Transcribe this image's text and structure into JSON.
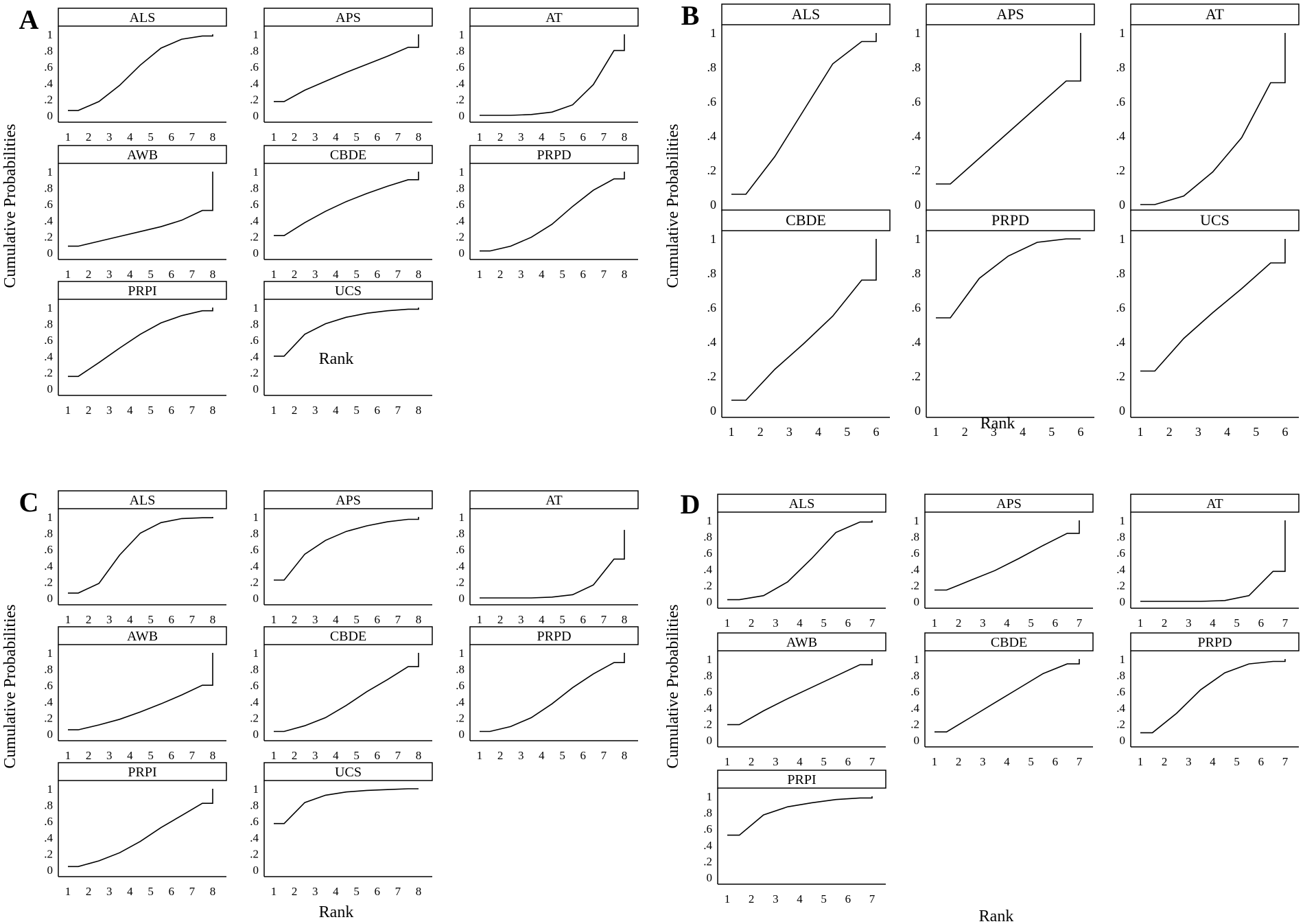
{
  "figure": {
    "panels": [
      {
        "label": "A",
        "xlabel": "Rank",
        "ylabel": "Cumulative Probabilities",
        "ytick_labels": [
          "0",
          ".2",
          ".4",
          ".6",
          ".8",
          "1"
        ],
        "n_rank": 8,
        "subplots": [
          {
            "title": "ALS",
            "values": [
              0.06,
              0.17,
              0.37,
              0.62,
              0.83,
              0.94,
              0.98,
              1.0
            ]
          },
          {
            "title": "APS",
            "values": [
              0.17,
              0.31,
              0.42,
              0.53,
              0.63,
              0.73,
              0.84,
              1.0
            ]
          },
          {
            "title": "AT",
            "values": [
              0.0,
              0.0,
              0.01,
              0.04,
              0.13,
              0.38,
              0.8,
              1.0
            ]
          },
          {
            "title": "AWB",
            "values": [
              0.08,
              0.14,
              0.2,
              0.26,
              0.32,
              0.4,
              0.52,
              1.0
            ]
          },
          {
            "title": "CBDE",
            "values": [
              0.21,
              0.37,
              0.51,
              0.63,
              0.73,
              0.82,
              0.9,
              1.0
            ]
          },
          {
            "title": "PRPD",
            "values": [
              0.02,
              0.08,
              0.19,
              0.35,
              0.57,
              0.77,
              0.91,
              1.0
            ]
          },
          {
            "title": "PRPI",
            "values": [
              0.15,
              0.32,
              0.5,
              0.67,
              0.81,
              0.9,
              0.96,
              1.0
            ]
          },
          {
            "title": "UCS",
            "values": [
              0.4,
              0.67,
              0.8,
              0.88,
              0.93,
              0.96,
              0.98,
              1.0
            ]
          }
        ]
      },
      {
        "label": "B",
        "xlabel": "Rank",
        "ylabel": "Cumulative Probabilities",
        "ytick_labels": [
          "0",
          ".2",
          ".4",
          ".6",
          ".8",
          "1"
        ],
        "n_rank": 6,
        "subplots": [
          {
            "title": "ALS",
            "values": [
              0.06,
              0.28,
              0.55,
              0.82,
              0.95,
              1.0
            ]
          },
          {
            "title": "APS",
            "values": [
              0.12,
              0.27,
              0.42,
              0.57,
              0.72,
              1.0
            ]
          },
          {
            "title": "AT",
            "values": [
              0.0,
              0.05,
              0.19,
              0.39,
              0.71,
              1.0
            ]
          },
          {
            "title": "CBDE",
            "values": [
              0.06,
              0.24,
              0.39,
              0.55,
              0.76,
              1.0
            ]
          },
          {
            "title": "PRPD",
            "values": [
              0.54,
              0.77,
              0.9,
              0.98,
              1.0,
              1.0
            ]
          },
          {
            "title": "UCS",
            "values": [
              0.23,
              0.42,
              0.57,
              0.71,
              0.86,
              1.0
            ]
          }
        ]
      },
      {
        "label": "C",
        "xlabel": "Rank",
        "ylabel": "Cumulative Probabilities",
        "ytick_labels": [
          "0",
          ".2",
          ".4",
          ".6",
          ".8",
          "1"
        ],
        "n_rank": 8,
        "subplots": [
          {
            "title": "ALS",
            "values": [
              0.06,
              0.18,
              0.53,
              0.8,
              0.93,
              0.98,
              0.99,
              1.0
            ]
          },
          {
            "title": "APS",
            "values": [
              0.22,
              0.54,
              0.71,
              0.82,
              0.89,
              0.94,
              0.97,
              1.0
            ]
          },
          {
            "title": "AT",
            "values": [
              0.0,
              0.0,
              0.0,
              0.01,
              0.04,
              0.16,
              0.48,
              0.84
            ]
          },
          {
            "title": "AWB",
            "values": [
              0.05,
              0.11,
              0.18,
              0.27,
              0.37,
              0.48,
              0.6,
              1.0
            ]
          },
          {
            "title": "CBDE",
            "values": [
              0.03,
              0.1,
              0.2,
              0.35,
              0.52,
              0.67,
              0.83,
              1.0
            ]
          },
          {
            "title": "PRPD",
            "values": [
              0.03,
              0.09,
              0.2,
              0.37,
              0.57,
              0.74,
              0.88,
              1.0
            ]
          },
          {
            "title": "PRPI",
            "values": [
              0.04,
              0.11,
              0.21,
              0.35,
              0.52,
              0.67,
              0.82,
              1.0
            ]
          },
          {
            "title": "UCS",
            "values": [
              0.57,
              0.83,
              0.92,
              0.96,
              0.98,
              0.99,
              1.0,
              1.0
            ]
          }
        ]
      },
      {
        "label": "D",
        "xlabel": "Rank",
        "ylabel": "Cumulative Probabilities",
        "ytick_labels": [
          "0",
          ".2",
          ".4",
          ".6",
          ".8",
          "1"
        ],
        "n_rank": 7,
        "subplots": [
          {
            "title": "ALS",
            "values": [
              0.02,
              0.07,
              0.24,
              0.53,
              0.85,
              0.98,
              1.0
            ]
          },
          {
            "title": "APS",
            "values": [
              0.14,
              0.26,
              0.38,
              0.53,
              0.69,
              0.84,
              1.0
            ]
          },
          {
            "title": "AT",
            "values": [
              0.0,
              0.0,
              0.0,
              0.01,
              0.07,
              0.37,
              1.0
            ]
          },
          {
            "title": "AWB",
            "values": [
              0.19,
              0.36,
              0.51,
              0.65,
              0.79,
              0.93,
              1.0
            ]
          },
          {
            "title": "CBDE",
            "values": [
              0.1,
              0.28,
              0.46,
              0.64,
              0.82,
              0.94,
              1.0
            ]
          },
          {
            "title": "PRPD",
            "values": [
              0.09,
              0.33,
              0.62,
              0.83,
              0.94,
              0.97,
              1.0
            ]
          },
          {
            "title": "PRPI",
            "values": [
              0.52,
              0.77,
              0.87,
              0.92,
              0.96,
              0.98,
              1.0
            ]
          }
        ]
      }
    ]
  },
  "chart_data": [
    {
      "panel": "A",
      "type": "line",
      "title": "",
      "xlabel": "Rank",
      "ylabel": "Cumulative Probabilities",
      "x": [
        1,
        2,
        3,
        4,
        5,
        6,
        7,
        8
      ],
      "ylim": [
        0,
        1
      ],
      "series": [
        {
          "name": "ALS",
          "values": [
            0.06,
            0.17,
            0.37,
            0.62,
            0.83,
            0.94,
            0.98,
            1.0
          ]
        },
        {
          "name": "APS",
          "values": [
            0.17,
            0.31,
            0.42,
            0.53,
            0.63,
            0.73,
            0.84,
            1.0
          ]
        },
        {
          "name": "AT",
          "values": [
            0.0,
            0.0,
            0.01,
            0.04,
            0.13,
            0.38,
            0.8,
            1.0
          ]
        },
        {
          "name": "AWB",
          "values": [
            0.08,
            0.14,
            0.2,
            0.26,
            0.32,
            0.4,
            0.52,
            1.0
          ]
        },
        {
          "name": "CBDE",
          "values": [
            0.21,
            0.37,
            0.51,
            0.63,
            0.73,
            0.82,
            0.9,
            1.0
          ]
        },
        {
          "name": "PRPD",
          "values": [
            0.02,
            0.08,
            0.19,
            0.35,
            0.57,
            0.77,
            0.91,
            1.0
          ]
        },
        {
          "name": "PRPI",
          "values": [
            0.15,
            0.32,
            0.5,
            0.67,
            0.81,
            0.9,
            0.96,
            1.0
          ]
        },
        {
          "name": "UCS",
          "values": [
            0.4,
            0.67,
            0.8,
            0.88,
            0.93,
            0.96,
            0.98,
            1.0
          ]
        }
      ]
    },
    {
      "panel": "B",
      "type": "line",
      "title": "",
      "xlabel": "Rank",
      "ylabel": "Cumulative Probabilities",
      "x": [
        1,
        2,
        3,
        4,
        5,
        6
      ],
      "ylim": [
        0,
        1
      ],
      "series": [
        {
          "name": "ALS",
          "values": [
            0.06,
            0.28,
            0.55,
            0.82,
            0.95,
            1.0
          ]
        },
        {
          "name": "APS",
          "values": [
            0.12,
            0.27,
            0.42,
            0.57,
            0.72,
            1.0
          ]
        },
        {
          "name": "AT",
          "values": [
            0.0,
            0.05,
            0.19,
            0.39,
            0.71,
            1.0
          ]
        },
        {
          "name": "CBDE",
          "values": [
            0.06,
            0.24,
            0.39,
            0.55,
            0.76,
            1.0
          ]
        },
        {
          "name": "PRPD",
          "values": [
            0.54,
            0.77,
            0.9,
            0.98,
            1.0,
            1.0
          ]
        },
        {
          "name": "UCS",
          "values": [
            0.23,
            0.42,
            0.57,
            0.71,
            0.86,
            1.0
          ]
        }
      ]
    },
    {
      "panel": "C",
      "type": "line",
      "title": "",
      "xlabel": "Rank",
      "ylabel": "Cumulative Probabilities",
      "x": [
        1,
        2,
        3,
        4,
        5,
        6,
        7,
        8
      ],
      "ylim": [
        0,
        1
      ],
      "series": [
        {
          "name": "ALS",
          "values": [
            0.06,
            0.18,
            0.53,
            0.8,
            0.93,
            0.98,
            0.99,
            1.0
          ]
        },
        {
          "name": "APS",
          "values": [
            0.22,
            0.54,
            0.71,
            0.82,
            0.89,
            0.94,
            0.97,
            1.0
          ]
        },
        {
          "name": "AT",
          "values": [
            0.0,
            0.0,
            0.0,
            0.01,
            0.04,
            0.16,
            0.48,
            0.84
          ]
        },
        {
          "name": "AWB",
          "values": [
            0.05,
            0.11,
            0.18,
            0.27,
            0.37,
            0.48,
            0.6,
            1.0
          ]
        },
        {
          "name": "CBDE",
          "values": [
            0.03,
            0.1,
            0.2,
            0.35,
            0.52,
            0.67,
            0.83,
            1.0
          ]
        },
        {
          "name": "PRPD",
          "values": [
            0.03,
            0.09,
            0.2,
            0.37,
            0.57,
            0.74,
            0.88,
            1.0
          ]
        },
        {
          "name": "PRPI",
          "values": [
            0.04,
            0.11,
            0.21,
            0.35,
            0.52,
            0.67,
            0.82,
            1.0
          ]
        },
        {
          "name": "UCS",
          "values": [
            0.57,
            0.83,
            0.92,
            0.96,
            0.98,
            0.99,
            1.0,
            1.0
          ]
        }
      ]
    },
    {
      "panel": "D",
      "type": "line",
      "title": "",
      "xlabel": "Rank",
      "ylabel": "Cumulative Probabilities",
      "x": [
        1,
        2,
        3,
        4,
        5,
        6,
        7
      ],
      "ylim": [
        0,
        1
      ],
      "series": [
        {
          "name": "ALS",
          "values": [
            0.02,
            0.07,
            0.24,
            0.53,
            0.85,
            0.98,
            1.0
          ]
        },
        {
          "name": "APS",
          "values": [
            0.14,
            0.26,
            0.38,
            0.53,
            0.69,
            0.84,
            1.0
          ]
        },
        {
          "name": "AT",
          "values": [
            0.0,
            0.0,
            0.0,
            0.01,
            0.07,
            0.37,
            1.0
          ]
        },
        {
          "name": "AWB",
          "values": [
            0.19,
            0.36,
            0.51,
            0.65,
            0.79,
            0.93,
            1.0
          ]
        },
        {
          "name": "CBDE",
          "values": [
            0.1,
            0.28,
            0.46,
            0.64,
            0.82,
            0.94,
            1.0
          ]
        },
        {
          "name": "PRPD",
          "values": [
            0.09,
            0.33,
            0.62,
            0.83,
            0.94,
            0.97,
            1.0
          ]
        },
        {
          "name": "PRPI",
          "values": [
            0.52,
            0.77,
            0.87,
            0.92,
            0.96,
            0.98,
            1.0
          ]
        }
      ]
    }
  ]
}
